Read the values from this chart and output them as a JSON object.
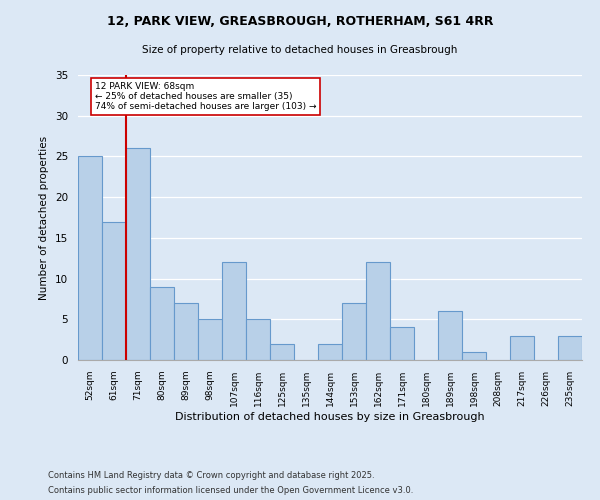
{
  "title1": "12, PARK VIEW, GREASBROUGH, ROTHERHAM, S61 4RR",
  "title2": "Size of property relative to detached houses in Greasbrough",
  "xlabel": "Distribution of detached houses by size in Greasbrough",
  "ylabel": "Number of detached properties",
  "categories": [
    "52sqm",
    "61sqm",
    "71sqm",
    "80sqm",
    "89sqm",
    "98sqm",
    "107sqm",
    "116sqm",
    "125sqm",
    "135sqm",
    "144sqm",
    "153sqm",
    "162sqm",
    "171sqm",
    "180sqm",
    "189sqm",
    "198sqm",
    "208sqm",
    "217sqm",
    "226sqm",
    "235sqm"
  ],
  "values": [
    25,
    17,
    26,
    9,
    7,
    5,
    12,
    5,
    2,
    0,
    2,
    7,
    12,
    4,
    0,
    6,
    1,
    0,
    3,
    0,
    3
  ],
  "bar_color": "#b8d0e8",
  "bar_edge_color": "#6699cc",
  "vline_x_index": 1.5,
  "vline_color": "#cc0000",
  "annotation_text": "12 PARK VIEW: 68sqm\n← 25% of detached houses are smaller (35)\n74% of semi-detached houses are larger (103) →",
  "annotation_box_color": "#ffffff",
  "annotation_border_color": "#cc0000",
  "ylim": [
    0,
    35
  ],
  "footer1": "Contains HM Land Registry data © Crown copyright and database right 2025.",
  "footer2": "Contains public sector information licensed under the Open Government Licence v3.0.",
  "bg_color": "#dce8f5",
  "plot_bg_color": "#dce8f5"
}
